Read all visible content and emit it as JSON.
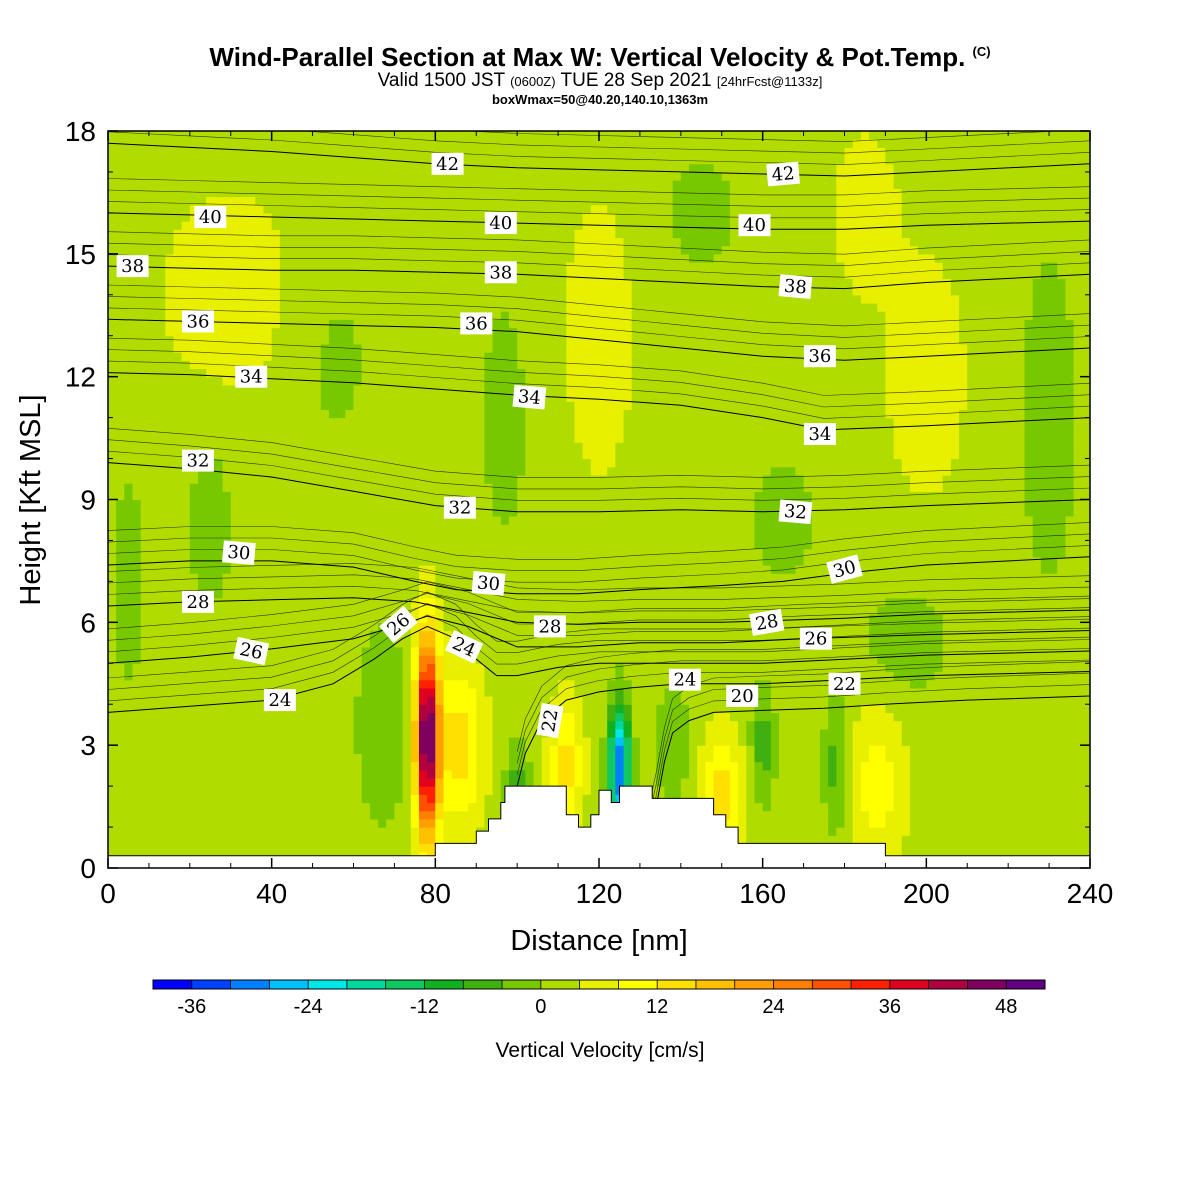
{
  "header": {
    "title": "Wind-Parallel Section at Max W: Vertical Velocity & Pot.Temp.",
    "title_mark": "(C)",
    "valid_prefix": "Valid 1500 JST",
    "valid_zulu": "(0600Z)",
    "valid_date": "TUE 28 Sep 2021",
    "forecast": "[24hrFcst@1133z]",
    "box_info": "boxWmax=50@40.20,140.10,1363m"
  },
  "chart_data": {
    "type": "heatmap",
    "xlabel": "Distance [nm]",
    "ylabel": "Height [Kft MSL]",
    "xlim": [
      0,
      240
    ],
    "ylim": [
      0,
      18
    ],
    "x_ticks": [
      "0",
      "40",
      "80",
      "120",
      "160",
      "200",
      "240"
    ],
    "y_ticks": [
      "0",
      "3",
      "6",
      "9",
      "12",
      "15",
      "18"
    ],
    "colorbar": {
      "title": "Vertical Velocity [cm/s]",
      "min": -40,
      "max": 52,
      "step": 4,
      "tick_labels": [
        "-36",
        "-24",
        "-12",
        "0",
        "12",
        "24",
        "36",
        "48"
      ],
      "colors": [
        "#0000ff",
        "#0040ff",
        "#0080ff",
        "#00c0ff",
        "#00e8e8",
        "#00d8a0",
        "#10c860",
        "#10b020",
        "#40b010",
        "#78c800",
        "#b0dc00",
        "#e8f000",
        "#ffff00",
        "#ffe000",
        "#ffc000",
        "#ffa000",
        "#ff8000",
        "#ff5000",
        "#ff2000",
        "#e00020",
        "#b00040",
        "#800060",
        "#600080"
      ]
    },
    "background_w": 2,
    "velocity_cells": [
      {
        "x": 78,
        "y": 3.2,
        "w": 48,
        "sx": 2.8,
        "sy": 2.4
      },
      {
        "x": 86,
        "y": 3.0,
        "w": 12,
        "sx": 6,
        "sy": 2.0
      },
      {
        "x": 112,
        "y": 2.5,
        "w": 12,
        "sx": 4,
        "sy": 1.6
      },
      {
        "x": 125,
        "y": 2.4,
        "w": -34,
        "sx": 2.5,
        "sy": 1.5
      },
      {
        "x": 150,
        "y": 1.8,
        "w": 12,
        "sx": 5,
        "sy": 1.5
      },
      {
        "x": 188,
        "y": 2.0,
        "w": 8,
        "sx": 7,
        "sy": 2.0
      },
      {
        "x": 67,
        "y": 3.5,
        "w": -6,
        "sx": 6,
        "sy": 2.4
      },
      {
        "x": 100,
        "y": 2.0,
        "w": -8,
        "sx": 3,
        "sy": 1.0
      },
      {
        "x": 138,
        "y": 3.0,
        "w": -6,
        "sx": 4,
        "sy": 1.4
      },
      {
        "x": 160,
        "y": 3.0,
        "w": -8,
        "sx": 3,
        "sy": 1.4
      },
      {
        "x": 178,
        "y": 2.5,
        "w": -8,
        "sx": 3,
        "sy": 1.6
      },
      {
        "x": 25,
        "y": 8.5,
        "w": -4,
        "sx": 6,
        "sy": 2.5
      },
      {
        "x": 55,
        "y": 12.5,
        "w": -3,
        "sx": 12,
        "sy": 3.0
      },
      {
        "x": 97,
        "y": 11,
        "w": -3,
        "sx": 8,
        "sy": 4.0
      },
      {
        "x": 145,
        "y": 16,
        "w": -3,
        "sx": 12,
        "sy": 2.0
      },
      {
        "x": 165,
        "y": 8.5,
        "w": -3,
        "sx": 12,
        "sy": 2.0
      },
      {
        "x": 195,
        "y": 5.5,
        "w": -4,
        "sx": 12,
        "sy": 1.5
      },
      {
        "x": 230,
        "y": 11,
        "w": -3,
        "sx": 10,
        "sy": 6.0
      },
      {
        "x": 5,
        "y": 7,
        "w": -4,
        "sx": 4,
        "sy": 3.0
      },
      {
        "x": 200,
        "y": 12,
        "w": 5,
        "sx": 10,
        "sy": 3.0
      },
      {
        "x": 185,
        "y": 16,
        "w": 5,
        "sx": 8,
        "sy": 2.0
      },
      {
        "x": 120,
        "y": 13,
        "w": 4,
        "sx": 10,
        "sy": 4.0
      },
      {
        "x": 30,
        "y": 14,
        "w": 4,
        "sx": 20,
        "sy": 3.0
      }
    ],
    "terrain": [
      [
        0,
        0.3
      ],
      [
        80,
        0.3
      ],
      [
        80,
        0.6
      ],
      [
        90,
        0.6
      ],
      [
        90,
        0.9
      ],
      [
        93,
        0.9
      ],
      [
        93,
        1.2
      ],
      [
        96,
        1.2
      ],
      [
        96,
        1.6
      ],
      [
        97,
        1.6
      ],
      [
        97,
        2.0
      ],
      [
        112,
        2.0
      ],
      [
        112,
        1.3
      ],
      [
        115,
        1.3
      ],
      [
        115,
        1.0
      ],
      [
        118,
        1.0
      ],
      [
        118,
        1.3
      ],
      [
        120,
        1.3
      ],
      [
        120,
        1.9
      ],
      [
        123,
        1.9
      ],
      [
        123,
        1.6
      ],
      [
        125,
        1.6
      ],
      [
        125,
        2.0
      ],
      [
        133,
        2.0
      ],
      [
        133,
        1.7
      ],
      [
        148,
        1.7
      ],
      [
        148,
        1.3
      ],
      [
        151,
        1.3
      ],
      [
        151,
        1.0
      ],
      [
        154,
        1.0
      ],
      [
        154,
        0.6
      ],
      [
        190,
        0.6
      ],
      [
        190,
        0.3
      ],
      [
        240,
        0.3
      ],
      [
        240,
        0
      ],
      [
        0,
        0
      ]
    ],
    "contours": [
      {
        "level": "20",
        "points": [
          [
            132,
            0.6
          ],
          [
            134,
            1.5
          ],
          [
            136,
            2.6
          ],
          [
            138,
            3.3
          ],
          [
            142,
            3.6
          ],
          [
            148,
            3.8
          ],
          [
            160,
            3.85
          ],
          [
            175,
            3.9
          ],
          [
            190,
            4.0
          ],
          [
            210,
            4.1
          ],
          [
            240,
            4.2
          ]
        ]
      },
      {
        "level": "22",
        "points": [
          [
            100,
            2.0
          ],
          [
            102,
            2.8
          ],
          [
            106,
            3.6
          ],
          [
            112,
            4.1
          ],
          [
            120,
            4.3
          ],
          [
            128,
            4.4
          ],
          [
            140,
            4.5
          ],
          [
            160,
            4.5
          ],
          [
            180,
            4.6
          ],
          [
            200,
            4.7
          ],
          [
            240,
            4.8
          ]
        ]
      },
      {
        "level": "24",
        "points": [
          [
            0,
            3.8
          ],
          [
            20,
            3.95
          ],
          [
            40,
            4.1
          ],
          [
            55,
            4.5
          ],
          [
            65,
            5.1
          ],
          [
            72,
            5.6
          ],
          [
            78,
            5.9
          ],
          [
            85,
            5.6
          ],
          [
            90,
            5.1
          ],
          [
            95,
            4.7
          ],
          [
            100,
            4.7
          ],
          [
            110,
            4.9
          ],
          [
            120,
            5.0
          ],
          [
            135,
            5.0
          ],
          [
            160,
            5.0
          ],
          [
            180,
            5.1
          ],
          [
            200,
            5.2
          ],
          [
            240,
            5.3
          ]
        ]
      },
      {
        "level": "26",
        "points": [
          [
            0,
            5.0
          ],
          [
            20,
            5.15
          ],
          [
            40,
            5.35
          ],
          [
            60,
            5.6
          ],
          [
            72,
            5.95
          ],
          [
            78,
            6.15
          ],
          [
            88,
            5.9
          ],
          [
            100,
            5.4
          ],
          [
            115,
            5.4
          ],
          [
            130,
            5.5
          ],
          [
            150,
            5.5
          ],
          [
            170,
            5.6
          ],
          [
            200,
            5.7
          ],
          [
            240,
            5.8
          ]
        ]
      },
      {
        "level": "28",
        "points": [
          [
            0,
            6.4
          ],
          [
            20,
            6.5
          ],
          [
            40,
            6.55
          ],
          [
            60,
            6.6
          ],
          [
            75,
            6.5
          ],
          [
            85,
            6.3
          ],
          [
            100,
            6.0
          ],
          [
            115,
            5.95
          ],
          [
            130,
            6.0
          ],
          [
            150,
            6.0
          ],
          [
            165,
            6.05
          ],
          [
            180,
            6.1
          ],
          [
            200,
            6.2
          ],
          [
            240,
            6.3
          ]
        ]
      },
      {
        "level": "30",
        "points": [
          [
            0,
            7.4
          ],
          [
            20,
            7.5
          ],
          [
            40,
            7.5
          ],
          [
            60,
            7.35
          ],
          [
            75,
            7.0
          ],
          [
            85,
            6.8
          ],
          [
            100,
            6.7
          ],
          [
            115,
            6.7
          ],
          [
            130,
            6.8
          ],
          [
            150,
            6.9
          ],
          [
            165,
            7.0
          ],
          [
            180,
            7.2
          ],
          [
            200,
            7.4
          ],
          [
            240,
            7.6
          ]
        ]
      },
      {
        "level": "32",
        "points": [
          [
            0,
            9.9
          ],
          [
            20,
            9.75
          ],
          [
            40,
            9.55
          ],
          [
            60,
            9.2
          ],
          [
            80,
            8.85
          ],
          [
            100,
            8.7
          ],
          [
            120,
            8.7
          ],
          [
            140,
            8.75
          ],
          [
            160,
            8.7
          ],
          [
            180,
            8.75
          ],
          [
            200,
            8.85
          ],
          [
            240,
            9.0
          ]
        ]
      },
      {
        "level": "34",
        "points": [
          [
            0,
            12.1
          ],
          [
            20,
            12.05
          ],
          [
            40,
            11.95
          ],
          [
            60,
            11.85
          ],
          [
            80,
            11.7
          ],
          [
            100,
            11.55
          ],
          [
            120,
            11.45
          ],
          [
            140,
            11.3
          ],
          [
            160,
            11.0
          ],
          [
            175,
            10.7
          ],
          [
            200,
            10.8
          ],
          [
            240,
            11.0
          ]
        ]
      },
      {
        "level": "36",
        "points": [
          [
            0,
            13.4
          ],
          [
            20,
            13.35
          ],
          [
            40,
            13.3
          ],
          [
            60,
            13.25
          ],
          [
            80,
            13.2
          ],
          [
            100,
            13.1
          ],
          [
            120,
            12.9
          ],
          [
            140,
            12.7
          ],
          [
            160,
            12.5
          ],
          [
            180,
            12.4
          ],
          [
            200,
            12.5
          ],
          [
            240,
            12.7
          ]
        ]
      },
      {
        "level": "38",
        "points": [
          [
            0,
            14.7
          ],
          [
            20,
            14.65
          ],
          [
            40,
            14.6
          ],
          [
            60,
            14.6
          ],
          [
            80,
            14.55
          ],
          [
            100,
            14.5
          ],
          [
            120,
            14.4
          ],
          [
            140,
            14.3
          ],
          [
            160,
            14.2
          ],
          [
            180,
            14.15
          ],
          [
            200,
            14.3
          ],
          [
            240,
            14.5
          ]
        ]
      },
      {
        "level": "40",
        "points": [
          [
            0,
            16.0
          ],
          [
            20,
            15.95
          ],
          [
            40,
            15.9
          ],
          [
            60,
            15.85
          ],
          [
            80,
            15.8
          ],
          [
            100,
            15.75
          ],
          [
            120,
            15.7
          ],
          [
            140,
            15.65
          ],
          [
            160,
            15.6
          ],
          [
            180,
            15.6
          ],
          [
            200,
            15.7
          ],
          [
            240,
            15.8
          ]
        ]
      },
      {
        "level": "42",
        "points": [
          [
            0,
            17.7
          ],
          [
            20,
            17.6
          ],
          [
            40,
            17.5
          ],
          [
            60,
            17.35
          ],
          [
            80,
            17.2
          ],
          [
            100,
            17.1
          ],
          [
            120,
            17.05
          ],
          [
            140,
            17.0
          ],
          [
            160,
            16.95
          ],
          [
            180,
            16.9
          ],
          [
            200,
            17.0
          ],
          [
            240,
            17.2
          ]
        ]
      }
    ],
    "contour_labels": [
      {
        "text": "42",
        "x": 83,
        "y": 17.2,
        "rot": 0
      },
      {
        "text": "42",
        "x": 165,
        "y": 16.95,
        "rot": -5
      },
      {
        "text": "40",
        "x": 25,
        "y": 15.9,
        "rot": 0
      },
      {
        "text": "40",
        "x": 96,
        "y": 15.75,
        "rot": 0
      },
      {
        "text": "40",
        "x": 158,
        "y": 15.7,
        "rot": 0
      },
      {
        "text": "38",
        "x": 6,
        "y": 14.7,
        "rot": 0
      },
      {
        "text": "38",
        "x": 96,
        "y": 14.55,
        "rot": 0
      },
      {
        "text": "38",
        "x": 168,
        "y": 14.2,
        "rot": 5
      },
      {
        "text": "36",
        "x": 22,
        "y": 13.35,
        "rot": 0
      },
      {
        "text": "36",
        "x": 90,
        "y": 13.3,
        "rot": 0
      },
      {
        "text": "36",
        "x": 174,
        "y": 12.5,
        "rot": 0
      },
      {
        "text": "34",
        "x": 35,
        "y": 12.0,
        "rot": 0
      },
      {
        "text": "34",
        "x": 103,
        "y": 11.5,
        "rot": 5
      },
      {
        "text": "34",
        "x": 174,
        "y": 10.6,
        "rot": 0
      },
      {
        "text": "32",
        "x": 22,
        "y": 9.95,
        "rot": 0
      },
      {
        "text": "32",
        "x": 86,
        "y": 8.8,
        "rot": 0
      },
      {
        "text": "32",
        "x": 168,
        "y": 8.7,
        "rot": 5
      },
      {
        "text": "30",
        "x": 32,
        "y": 7.7,
        "rot": 5
      },
      {
        "text": "30",
        "x": 93,
        "y": 6.95,
        "rot": 5
      },
      {
        "text": "30",
        "x": 180,
        "y": 7.3,
        "rot": -15
      },
      {
        "text": "28",
        "x": 22,
        "y": 6.5,
        "rot": 0
      },
      {
        "text": "28",
        "x": 108,
        "y": 5.9,
        "rot": 0
      },
      {
        "text": "28",
        "x": 161,
        "y": 6.0,
        "rot": -10
      },
      {
        "text": "26",
        "x": 35,
        "y": 5.3,
        "rot": 12
      },
      {
        "text": "26",
        "x": 71,
        "y": 5.95,
        "rot": -40
      },
      {
        "text": "26",
        "x": 173,
        "y": 5.6,
        "rot": 0
      },
      {
        "text": "24",
        "x": 42,
        "y": 4.1,
        "rot": 0
      },
      {
        "text": "24",
        "x": 87,
        "y": 5.4,
        "rot": 25
      },
      {
        "text": "24",
        "x": 141,
        "y": 4.6,
        "rot": 0
      },
      {
        "text": "22",
        "x": 108,
        "y": 3.6,
        "rot": -80
      },
      {
        "text": "22",
        "x": 180,
        "y": 4.5,
        "rot": 0
      },
      {
        "text": "20",
        "x": 155,
        "y": 4.2,
        "rot": 0
      }
    ]
  }
}
